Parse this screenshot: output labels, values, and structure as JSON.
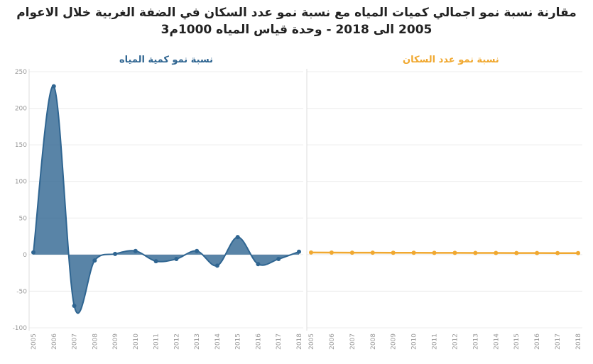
{
  "title": "مقارنة نسبة نمو اجمالي كميات المياه مع نسبة نمو عدد السكان في الضفة الغربية خلال الاعوام 2005 الى 2018 - وحدة قياس المياه 1000م3",
  "chart_data": [
    {
      "type": "area",
      "categories": [
        "2005",
        "2006",
        "2007",
        "2008",
        "2009",
        "2010",
        "2011",
        "2012",
        "2013",
        "2014",
        "2015",
        "2016",
        "2017",
        "2018"
      ],
      "series": [
        {
          "name": "نسبة نمو كمية المياه",
          "color": "#2f6591",
          "values": [
            3,
            230,
            -70,
            -8,
            1,
            5,
            -9,
            -6,
            5,
            -15,
            24,
            -13,
            -6,
            4
          ]
        }
      ],
      "ylim": [
        -100,
        250
      ],
      "yticks": [
        -100,
        -50,
        0,
        50,
        100,
        150,
        200,
        250
      ],
      "grid": true
    },
    {
      "type": "line",
      "categories": [
        "2005",
        "2006",
        "2007",
        "2008",
        "2009",
        "2010",
        "2011",
        "2012",
        "2013",
        "2014",
        "2015",
        "2016",
        "2017",
        "2018"
      ],
      "series": [
        {
          "name": "نسبة نمو عدد السكان",
          "color": "#f0a830",
          "values": [
            2.9,
            2.8,
            2.7,
            2.6,
            2.5,
            2.5,
            2.4,
            2.4,
            2.3,
            2.3,
            2.2,
            2.2,
            2.1,
            2.1
          ]
        }
      ],
      "ylim": [
        -100,
        250
      ],
      "yticks": [
        -100,
        -50,
        0,
        50,
        100,
        150,
        200,
        250
      ],
      "grid": true
    }
  ]
}
